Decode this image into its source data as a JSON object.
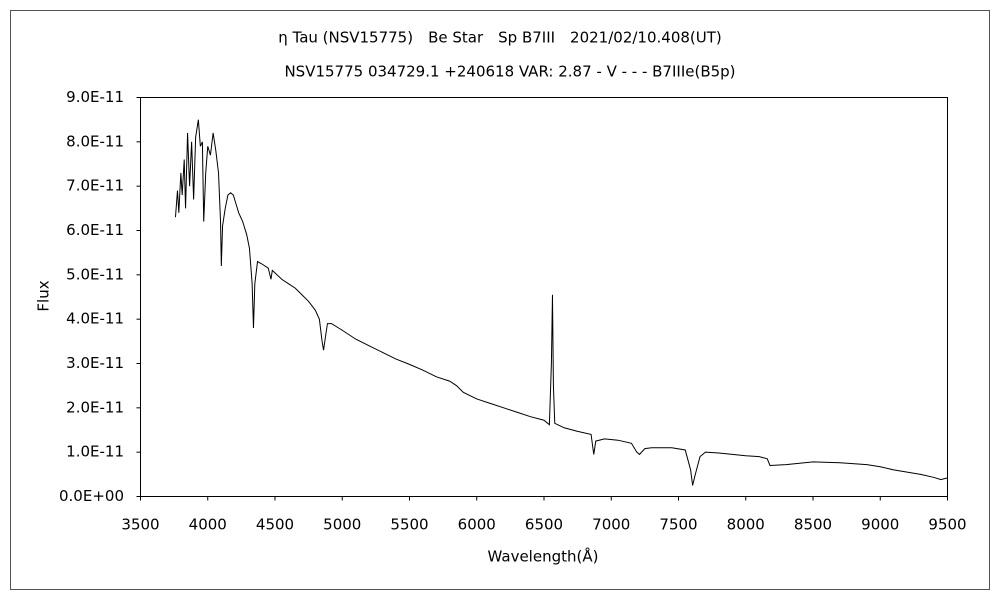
{
  "chart_data": {
    "type": "line",
    "title": "η Tau (NSV15775)　Be Star　Sp B7III　2021/02/10.408(UT)",
    "subtitle": "NSV15775 034729.1 +240618 VAR: 2.87 - V - - - B7IIIe(B5p)",
    "x_label": "Wavelength(Å)",
    "y_label": "Flux",
    "color": "#000000",
    "xlim": [
      3500,
      9500
    ],
    "xticks": [
      3500,
      4000,
      4500,
      5000,
      5500,
      6000,
      6500,
      7000,
      7500,
      8000,
      8500,
      9000,
      9500
    ],
    "ylim": [
      0,
      9e-11
    ],
    "yticks": [
      {
        "value": 0,
        "label": "0.0E+00"
      },
      {
        "value": 1e-11,
        "label": "1.0E-11"
      },
      {
        "value": 2e-11,
        "label": "2.0E-11"
      },
      {
        "value": 3e-11,
        "label": "3.0E-11"
      },
      {
        "value": 4e-11,
        "label": "4.0E-11"
      },
      {
        "value": 5e-11,
        "label": "5.0E-11"
      },
      {
        "value": 6e-11,
        "label": "6.0E-11"
      },
      {
        "value": 7e-11,
        "label": "7.0E-11"
      },
      {
        "value": 8e-11,
        "label": "8.0E-11"
      },
      {
        "value": 9e-11,
        "label": "9.0E-11"
      }
    ],
    "grid": false,
    "x": [
      3760,
      3775,
      3785,
      3800,
      3810,
      3825,
      3835,
      3850,
      3865,
      3880,
      3895,
      3910,
      3930,
      3945,
      3960,
      3970,
      3985,
      4000,
      4020,
      4040,
      4060,
      4080,
      4095,
      4101,
      4110,
      4130,
      4150,
      4170,
      4190,
      4210,
      4230,
      4260,
      4290,
      4310,
      4330,
      4340,
      4350,
      4370,
      4400,
      4450,
      4470,
      4480,
      4550,
      4600,
      4650,
      4700,
      4750,
      4800,
      4830,
      4850,
      4861,
      4875,
      4890,
      4920,
      5000,
      5100,
      5200,
      5300,
      5400,
      5500,
      5600,
      5700,
      5800,
      5850,
      5900,
      6000,
      6100,
      6200,
      6300,
      6400,
      6500,
      6540,
      6555,
      6563,
      6570,
      6580,
      6650,
      6750,
      6850,
      6870,
      6885,
      6950,
      7050,
      7150,
      7190,
      7210,
      7250,
      7300,
      7450,
      7550,
      7590,
      7605,
      7625,
      7660,
      7700,
      7800,
      7900,
      8000,
      8100,
      8160,
      8180,
      8300,
      8500,
      8700,
      8900,
      9000,
      9100,
      9200,
      9300,
      9400,
      9450,
      9500
    ],
    "values": [
      6.3e-11,
      6.9e-11,
      6.4e-11,
      7.3e-11,
      6.8e-11,
      7.6e-11,
      6.5e-11,
      8.2e-11,
      7e-11,
      8e-11,
      6.7e-11,
      8.1e-11,
      8.5e-11,
      7.9e-11,
      8e-11,
      6.2e-11,
      7.3e-11,
      7.9e-11,
      7.7e-11,
      8.2e-11,
      7.8e-11,
      7.3e-11,
      6.2e-11,
      5.2e-11,
      6.1e-11,
      6.5e-11,
      6.8e-11,
      6.85e-11,
      6.8e-11,
      6.6e-11,
      6.4e-11,
      6.2e-11,
      5.9e-11,
      5.6e-11,
      4.8e-11,
      3.8e-11,
      4.8e-11,
      5.3e-11,
      5.25e-11,
      5.15e-11,
      4.9e-11,
      5.1e-11,
      4.9e-11,
      4.8e-11,
      4.7e-11,
      4.55e-11,
      4.4e-11,
      4.2e-11,
      4e-11,
      3.5e-11,
      3.3e-11,
      3.6e-11,
      3.9e-11,
      3.9e-11,
      3.75e-11,
      3.55e-11,
      3.4e-11,
      3.25e-11,
      3.1e-11,
      2.98e-11,
      2.85e-11,
      2.7e-11,
      2.6e-11,
      2.5e-11,
      2.35e-11,
      2.2e-11,
      2.1e-11,
      2e-11,
      1.9e-11,
      1.8e-11,
      1.72e-11,
      1.62e-11,
      3e-11,
      4.55e-11,
      2.5e-11,
      1.65e-11,
      1.55e-11,
      1.47e-11,
      1.4e-11,
      9.5e-12,
      1.25e-11,
      1.3e-11,
      1.27e-11,
      1.2e-11,
      1e-11,
      9.5e-12,
      1.08e-11,
      1.1e-11,
      1.1e-11,
      1.05e-11,
      6e-12,
      2.5e-12,
      5e-12,
      9e-12,
      1e-11,
      9.8e-12,
      9.5e-12,
      9.2e-12,
      9e-12,
      8.5e-12,
      7e-12,
      7.2e-12,
      7.8e-12,
      7.6e-12,
      7.2e-12,
      6.7e-12,
      6e-12,
      5.5e-12,
      5e-12,
      4.3e-12,
      3.8e-12,
      4.2e-12
    ]
  }
}
